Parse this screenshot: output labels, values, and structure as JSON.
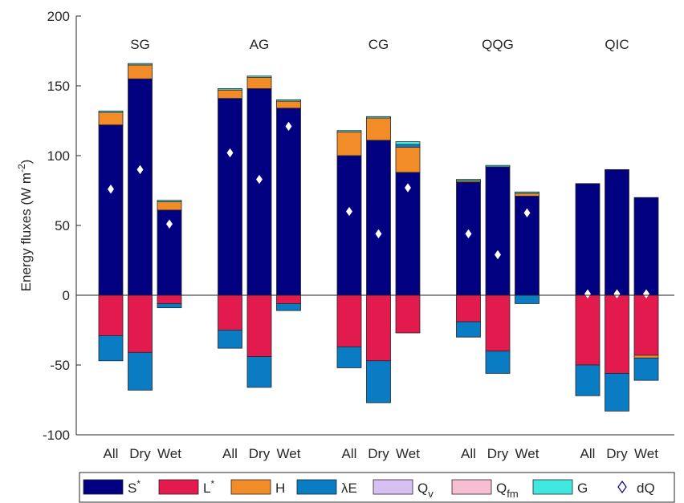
{
  "chart_data": {
    "type": "bar",
    "stacked": true,
    "ylabel": "Energy fluxes (W m",
    "ylabel_sup": "-2",
    "ylabel_end": ")",
    "ylim": [
      -100,
      200
    ],
    "yticks": [
      -100,
      -50,
      0,
      50,
      100,
      150,
      200
    ],
    "ytick_labels": [
      "-100",
      "-50",
      "0",
      "50",
      "100",
      "150",
      "200"
    ],
    "grid": false,
    "legend_position": "bottom",
    "colors": {
      "S": "#000080",
      "L": "#E31A4D",
      "H": "#F28C28",
      "LE": "#0A7CC4",
      "Qv": "#D8BFF2",
      "Qfm": "#F6BED2",
      "G": "#40E8E0",
      "dQ": "#ffffff"
    },
    "legend": [
      {
        "key": "S",
        "label": "S",
        "sup": "*",
        "sub": "",
        "kind": "patch"
      },
      {
        "key": "L",
        "label": "L",
        "sup": "*",
        "sub": "",
        "kind": "patch"
      },
      {
        "key": "H",
        "label": "H",
        "sup": "",
        "sub": "",
        "kind": "patch"
      },
      {
        "key": "LE",
        "label": "λE",
        "sup": "",
        "sub": "",
        "kind": "patch"
      },
      {
        "key": "Qv",
        "label": "Q",
        "sup": "",
        "sub": "v",
        "kind": "patch"
      },
      {
        "key": "Qfm",
        "label": "Q",
        "sup": "",
        "sub": "fm",
        "kind": "patch"
      },
      {
        "key": "G",
        "label": "G",
        "sup": "",
        "sub": "",
        "kind": "patch"
      },
      {
        "key": "dQ",
        "label": "dQ",
        "sup": "",
        "sub": "",
        "kind": "marker"
      }
    ],
    "groups": [
      {
        "name": "SG",
        "bars": [
          {
            "label": "All",
            "S": 122,
            "H": 9,
            "LE_pos": 0,
            "Qv": 0,
            "Qfm": 0,
            "G": 1,
            "L": -29,
            "LE": -18,
            "H_neg": 0,
            "dQ": 76
          },
          {
            "label": "Dry",
            "S": 155,
            "H": 10,
            "LE_pos": 0,
            "Qv": 0,
            "Qfm": 0,
            "G": 1,
            "L": -41,
            "LE": -27,
            "H_neg": 0,
            "dQ": 90
          },
          {
            "label": "Wet",
            "S": 61,
            "H": 6,
            "LE_pos": 0,
            "Qv": 0,
            "Qfm": 0,
            "G": 1,
            "L": -6,
            "LE": -3,
            "H_neg": 0,
            "dQ": 51
          }
        ]
      },
      {
        "name": "AG",
        "bars": [
          {
            "label": "All",
            "S": 141,
            "H": 6,
            "LE_pos": 0,
            "Qv": 0,
            "Qfm": 0,
            "G": 1,
            "L": -25,
            "LE": -13,
            "H_neg": 0,
            "dQ": 102
          },
          {
            "label": "Dry",
            "S": 148,
            "H": 8,
            "LE_pos": 0,
            "Qv": 0,
            "Qfm": 0,
            "G": 1,
            "L": -44,
            "LE": -22,
            "H_neg": 0,
            "dQ": 83
          },
          {
            "label": "Wet",
            "S": 134,
            "H": 5,
            "LE_pos": 0,
            "Qv": 0,
            "Qfm": 0,
            "G": 1,
            "L": -6,
            "LE": -5,
            "H_neg": 0,
            "dQ": 121
          }
        ]
      },
      {
        "name": "CG",
        "bars": [
          {
            "label": "All",
            "S": 100,
            "H": 17,
            "LE_pos": 0,
            "Qv": 0,
            "Qfm": 0,
            "G": 1,
            "L": -37,
            "LE": -15,
            "H_neg": 0,
            "dQ": 60
          },
          {
            "label": "Dry",
            "S": 111,
            "H": 16,
            "LE_pos": 0,
            "Qv": 0,
            "Qfm": 0,
            "G": 1,
            "L": -47,
            "LE": -30,
            "H_neg": 0,
            "dQ": 44
          },
          {
            "label": "Wet",
            "S": 88,
            "H": 18,
            "LE_pos": 2,
            "Qv": 0,
            "Qfm": 0,
            "G": 2,
            "L": -27,
            "LE": 0,
            "H_neg": 0,
            "dQ": 77
          }
        ]
      },
      {
        "name": "QQG",
        "bars": [
          {
            "label": "All",
            "S": 81,
            "H": 1,
            "LE_pos": 0,
            "Qv": 0,
            "Qfm": 0,
            "G": 1,
            "L": -19,
            "LE": -11,
            "H_neg": 0,
            "dQ": 44
          },
          {
            "label": "Dry",
            "S": 92,
            "H": 0,
            "LE_pos": 0,
            "Qv": 0,
            "Qfm": 0,
            "G": 1,
            "L": -40,
            "LE": -16,
            "H_neg": 0,
            "dQ": 29
          },
          {
            "label": "Wet",
            "S": 71,
            "H": 2,
            "LE_pos": 0,
            "Qv": 0,
            "Qfm": 0,
            "G": 1,
            "L": 0,
            "LE": -6,
            "H_neg": 0,
            "dQ": 59
          }
        ]
      },
      {
        "name": "QIC",
        "bars": [
          {
            "label": "All",
            "S": 80,
            "H": 0,
            "LE_pos": 0,
            "Qv": 0,
            "Qfm": 0,
            "G": 0,
            "L": -50,
            "LE": -22,
            "H_neg": 0,
            "dQ": 1
          },
          {
            "label": "Dry",
            "S": 90,
            "H": 0,
            "LE_pos": 0,
            "Qv": 0,
            "Qfm": 0,
            "G": 0,
            "L": -56,
            "LE": -27,
            "H_neg": 0,
            "dQ": 1
          },
          {
            "label": "Wet",
            "S": 70,
            "H": 0,
            "LE_pos": 0,
            "Qv": 0,
            "Qfm": 0,
            "G": 0,
            "L": -43,
            "LE": -16,
            "H_neg": -2,
            "dQ": 1
          }
        ]
      }
    ]
  }
}
